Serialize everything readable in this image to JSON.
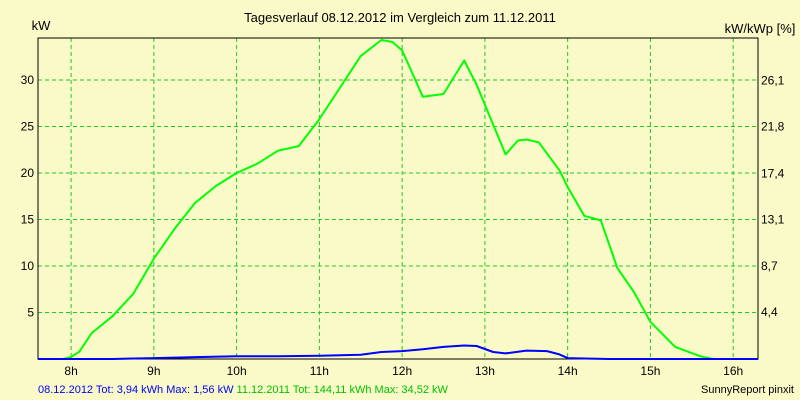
{
  "chart_data": {
    "type": "line",
    "title": "Tagesverlauf 08.12.2012 im Vergleich zum 11.12.2011",
    "ylabel": "kW",
    "y2label": "kW/kWp [%]",
    "xlim": [
      7.6,
      16.3
    ],
    "ylim": [
      0,
      34.52
    ],
    "x_ticks": [
      8,
      9,
      10,
      11,
      12,
      13,
      14,
      15,
      16
    ],
    "x_tick_labels": [
      "8h",
      "9h",
      "10h",
      "11h",
      "12h",
      "13h",
      "14h",
      "15h",
      "16h"
    ],
    "y_ticks": [
      5,
      10,
      15,
      20,
      25,
      30
    ],
    "y_tick_labels": [
      "5",
      "10",
      "15",
      "20",
      "25",
      "30"
    ],
    "y2_ticks": [
      4.4,
      8.7,
      13.1,
      17.4,
      21.8,
      26.1
    ],
    "y2_tick_labels": [
      "4,4",
      "8,7",
      "13,1",
      "17,4",
      "21,8",
      "26,1"
    ],
    "y2_scale": 0.8718,
    "grid": true,
    "series": [
      {
        "color": "#00ff00",
        "x": [
          7.6,
          7.75,
          7.9,
          8.0,
          8.1,
          8.25,
          8.5,
          8.75,
          9.0,
          9.25,
          9.5,
          9.75,
          10.0,
          10.25,
          10.5,
          10.75,
          11.0,
          11.25,
          11.5,
          11.75,
          11.88,
          12.0,
          12.12,
          12.25,
          12.5,
          12.75,
          12.9,
          13.1,
          13.25,
          13.4,
          13.5,
          13.65,
          13.9,
          14.0,
          14.2,
          14.4,
          14.6,
          14.8,
          15.0,
          15.3,
          15.6,
          15.75,
          16.0,
          16.3
        ],
        "y": [
          0,
          0,
          0,
          0.2,
          0.8,
          2.8,
          4.6,
          7.0,
          10.8,
          14.0,
          16.8,
          18.6,
          20.0,
          21.0,
          22.4,
          22.9,
          25.8,
          29.2,
          32.6,
          34.3,
          34.1,
          33.2,
          30.8,
          28.2,
          28.5,
          32.1,
          29.5,
          25.2,
          22.0,
          23.5,
          23.6,
          23.3,
          20.3,
          18.5,
          15.4,
          14.9,
          9.8,
          7.2,
          4.0,
          1.3,
          0.3,
          0,
          0,
          0
        ]
      },
      {
        "color": "#0000ff",
        "x": [
          7.6,
          8.0,
          8.5,
          9.0,
          9.5,
          10.0,
          10.5,
          11.0,
          11.5,
          11.75,
          12.0,
          12.25,
          12.5,
          12.75,
          12.9,
          13.1,
          13.25,
          13.5,
          13.75,
          13.9,
          14.0,
          14.5,
          15.0,
          15.5,
          16.0,
          16.3
        ],
        "y": [
          0,
          0,
          0,
          0.1,
          0.2,
          0.3,
          0.3,
          0.35,
          0.45,
          0.75,
          0.85,
          1.05,
          1.3,
          1.45,
          1.4,
          0.75,
          0.6,
          0.9,
          0.85,
          0.5,
          0.1,
          0,
          0,
          0,
          0,
          0
        ]
      }
    ],
    "legend": [
      {
        "text": "08.12.2012 Tot: 3,94 kWh Max: 1,56 kW",
        "color": "#0000ff"
      },
      {
        "text": "11.12.2011 Tot: 144,11 kWh Max: 34,52 kW",
        "color": "#00c000"
      }
    ],
    "credit": "SunnyReport pinxit"
  }
}
